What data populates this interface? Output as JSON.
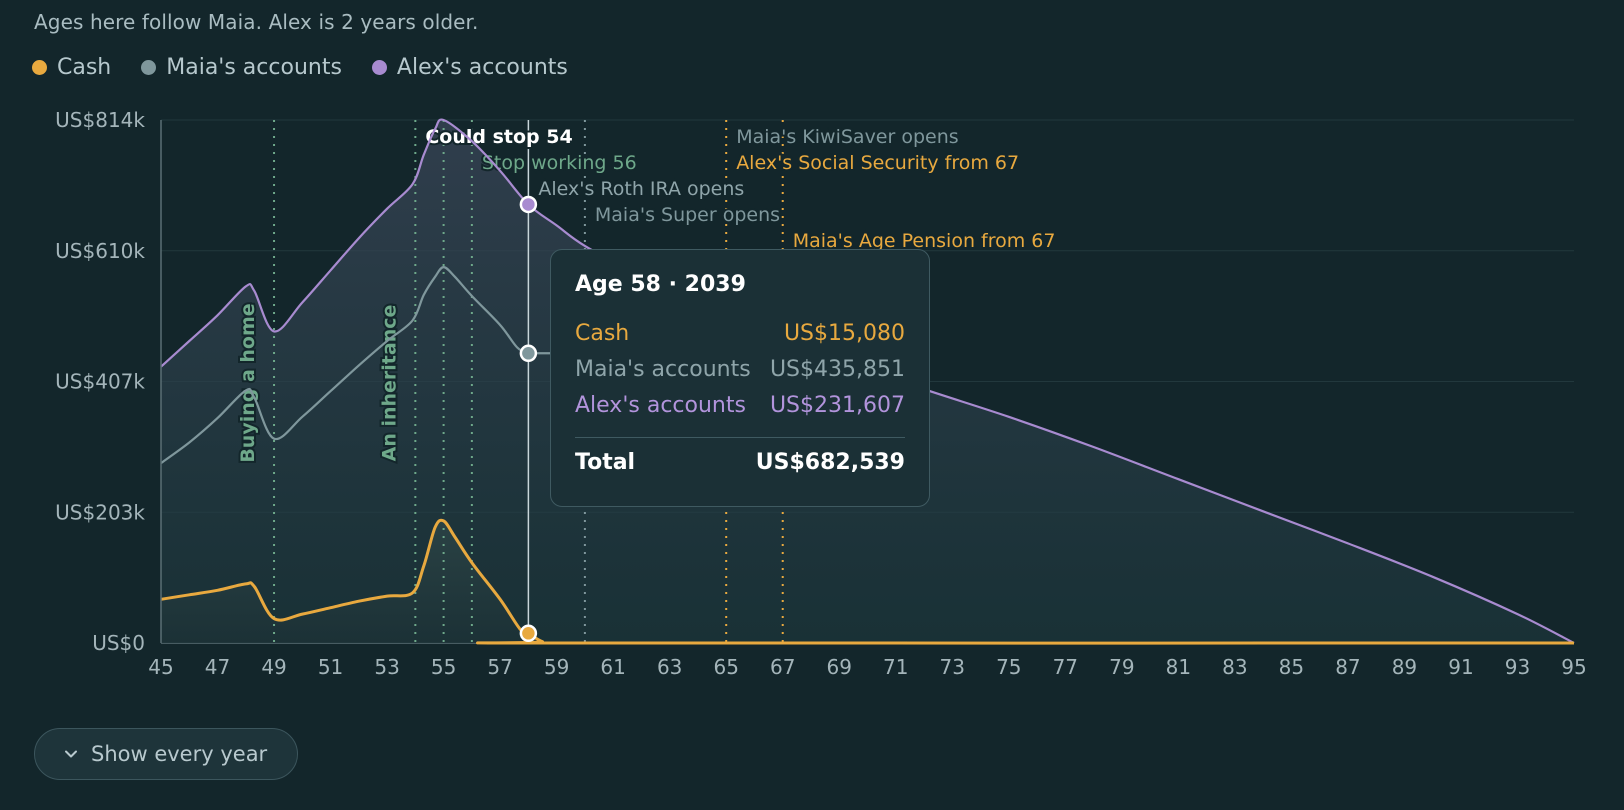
{
  "note": "Ages here follow Maia. Alex is 2 years older.",
  "legend": [
    {
      "label": "Cash",
      "color": "#e8a93f"
    },
    {
      "label": "Maia's accounts",
      "color": "#7f979c"
    },
    {
      "label": "Alex's accounts",
      "color": "#a88bd0"
    }
  ],
  "chart_data": {
    "type": "area",
    "x_tick_labels": [
      "45",
      "47",
      "49",
      "51",
      "53",
      "55",
      "57",
      "59",
      "61",
      "63",
      "65",
      "67",
      "69",
      "71",
      "73",
      "75",
      "77",
      "79",
      "81",
      "83",
      "85",
      "87",
      "89",
      "91",
      "93",
      "95"
    ],
    "y_tick_labels": [
      "US$0",
      "US$203k",
      "US$407k",
      "US$610k",
      "US$814k"
    ],
    "xlim": [
      45,
      95
    ],
    "ylim": [
      0,
      814000
    ],
    "stacked": true,
    "grid": true,
    "series": [
      {
        "name": "Cash",
        "color": "#e8a93f",
        "points": [
          [
            45,
            68000
          ],
          [
            46,
            75000
          ],
          [
            47,
            82000
          ],
          [
            48,
            92000
          ],
          [
            48.3,
            88000
          ],
          [
            49,
            38000
          ],
          [
            50,
            45000
          ],
          [
            51,
            55000
          ],
          [
            52,
            65000
          ],
          [
            53,
            73000
          ],
          [
            53.9,
            78000
          ],
          [
            54.3,
            120000
          ],
          [
            54.7,
            180000
          ],
          [
            55,
            190000
          ],
          [
            55.4,
            165000
          ],
          [
            56,
            125000
          ],
          [
            57,
            68000
          ],
          [
            57.7,
            22000
          ],
          [
            58,
            15080
          ],
          [
            58.5,
            2000
          ],
          [
            59,
            0
          ],
          [
            95,
            0
          ]
        ]
      },
      {
        "name": "Maia's accounts",
        "color": "#7f979c",
        "points": [
          [
            45,
            280000
          ],
          [
            46,
            312000
          ],
          [
            47,
            350000
          ],
          [
            48,
            393000
          ],
          [
            48.3,
            382000
          ],
          [
            49,
            318000
          ],
          [
            50,
            352000
          ],
          [
            51,
            392000
          ],
          [
            52,
            432000
          ],
          [
            53,
            470000
          ],
          [
            53.9,
            502000
          ],
          [
            54.3,
            542000
          ],
          [
            54.7,
            570000
          ],
          [
            55,
            585000
          ],
          [
            55.4,
            570000
          ],
          [
            56,
            540000
          ],
          [
            57,
            495000
          ],
          [
            57.6,
            460000
          ],
          [
            58,
            450931
          ]
        ]
      },
      {
        "name": "Alex's accounts",
        "color": "#a88bd0",
        "points": [
          [
            45,
            430000
          ],
          [
            46,
            470000
          ],
          [
            47,
            510000
          ],
          [
            48,
            555000
          ],
          [
            48.3,
            548000
          ],
          [
            49,
            485000
          ],
          [
            50,
            530000
          ],
          [
            51,
            580000
          ],
          [
            52,
            630000
          ],
          [
            53,
            676000
          ],
          [
            53.9,
            714000
          ],
          [
            54.3,
            760000
          ],
          [
            54.7,
            800000
          ],
          [
            55,
            814000
          ],
          [
            56,
            781000
          ],
          [
            57,
            735000
          ],
          [
            58,
            682539
          ],
          [
            59,
            650000
          ],
          [
            60,
            618000
          ],
          [
            62,
            570000
          ],
          [
            65,
            500000
          ],
          [
            67,
            470000
          ],
          [
            69,
            440000
          ],
          [
            72,
            395000
          ],
          [
            75,
            352000
          ],
          [
            78,
            305000
          ],
          [
            81,
            255000
          ],
          [
            84,
            205000
          ],
          [
            87,
            155000
          ],
          [
            90,
            103000
          ],
          [
            93,
            45000
          ],
          [
            95,
            0
          ]
        ]
      }
    ],
    "markers": [
      {
        "age": 49,
        "label": "Buying a home",
        "style": "dotted",
        "color": "#6ea88a",
        "vertical": true
      },
      {
        "age": 54,
        "label": "An inheritance",
        "style": "dotted",
        "color": "#6ea88a",
        "vertical": true
      },
      {
        "age": 54,
        "label": "Could stop 54",
        "style": "dashed",
        "color": "#ffffff",
        "bold": true
      },
      {
        "age": 55,
        "label": "",
        "style": "dotted",
        "color": "#6ea88a"
      },
      {
        "age": 56,
        "label": "Stop working 56",
        "style": "dotted",
        "color": "#6ea88a"
      },
      {
        "age": 58,
        "label": "Alex's Roth IRA opens",
        "style": "solid",
        "color": "#c8d6da"
      },
      {
        "age": 60,
        "label": "Maia's Super opens",
        "style": "dotted",
        "color": "#7f979c"
      },
      {
        "age": 65,
        "label": "Maia's KiwiSaver opens",
        "style": "dotted",
        "color": "#e8a93f",
        "label_color": "#7f979c"
      },
      {
        "age": 65,
        "label": "Alex's Social Security from 67",
        "style": "dotted",
        "color": "#e8a93f"
      },
      {
        "age": 67,
        "label": "Maia's Age Pension from 67",
        "style": "dotted",
        "color": "#e8a93f"
      }
    ],
    "hover_age": 58
  },
  "tooltip": {
    "title": "Age 58 · 2039",
    "rows": [
      {
        "label": "Cash",
        "value": "US$15,080",
        "color": "#e8a93f"
      },
      {
        "label": "Maia's accounts",
        "value": "US$435,851",
        "color": "#8fa5aa"
      },
      {
        "label": "Alex's accounts",
        "value": "US$231,607",
        "color": "#b294dc"
      }
    ],
    "total_label": "Total",
    "total_value": "US$682,539"
  },
  "button": {
    "label": "Show every year",
    "icon": "chevron-down-icon"
  }
}
